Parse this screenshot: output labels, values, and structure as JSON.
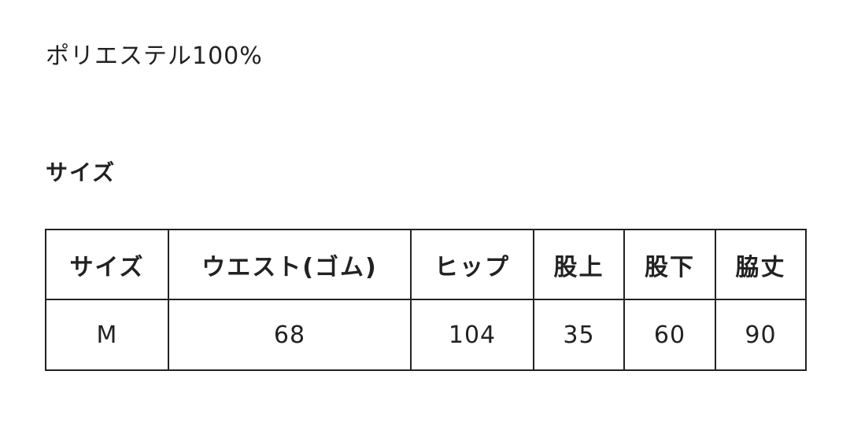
{
  "material": "ポリエステル100%",
  "size_heading": "サイズ",
  "table": {
    "headers": [
      "サイズ",
      "ウエスト(ゴム)",
      "ヒップ",
      "股上",
      "股下",
      "脇丈"
    ],
    "rows": [
      [
        "M",
        "68",
        "104",
        "35",
        "60",
        "90"
      ]
    ]
  }
}
